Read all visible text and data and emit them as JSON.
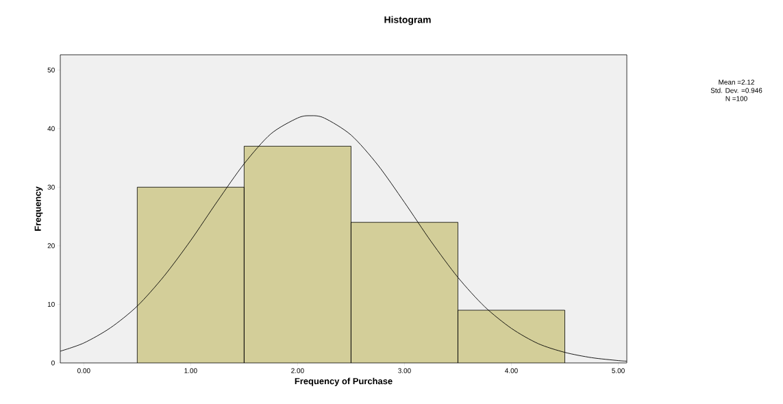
{
  "chart_data": {
    "type": "histogram",
    "title": "Histogram",
    "xlabel": "Frequency of Purchase",
    "ylabel": "Frequency",
    "bins": [
      0.5,
      1.5,
      2.5,
      3.5,
      4.5
    ],
    "series": [
      {
        "color": "#d3ce99",
        "values": [
          30,
          37,
          24,
          9
        ]
      },
      {
        "type": "line",
        "color": "#000000",
        "x": [
          -0.22,
          0,
          0.25,
          0.5,
          0.75,
          1.0,
          1.25,
          1.5,
          1.75,
          2.0,
          2.12,
          2.25,
          2.5,
          2.75,
          3.0,
          3.25,
          3.5,
          3.75,
          4.0,
          4.25,
          4.5,
          4.75,
          5.0,
          5.08
        ],
        "values": [
          2.0,
          3.4,
          6.0,
          9.7,
          14.8,
          20.9,
          27.6,
          34.0,
          39.1,
          41.8,
          42.2,
          41.8,
          38.9,
          33.8,
          27.4,
          20.7,
          14.6,
          9.6,
          5.9,
          3.3,
          1.8,
          0.9,
          0.4,
          0.3
        ]
      }
    ],
    "xlim": [
      -0.22,
      5.08
    ],
    "ylim": [
      0,
      52.6
    ],
    "xticks": [
      {
        "value": 0,
        "label": "0.00"
      },
      {
        "value": 1,
        "label": "1.00"
      },
      {
        "value": 2,
        "label": "2.00"
      },
      {
        "value": 3,
        "label": "3.00"
      },
      {
        "value": 4,
        "label": "4.00"
      },
      {
        "value": 5,
        "label": "5.00"
      }
    ],
    "yticks": [
      0,
      10,
      20,
      30,
      40,
      50
    ],
    "marker": "none",
    "line_style": "solid",
    "annotations": [
      "Mean =2.12",
      "Std. Dev. =0.946",
      "N =100"
    ]
  }
}
